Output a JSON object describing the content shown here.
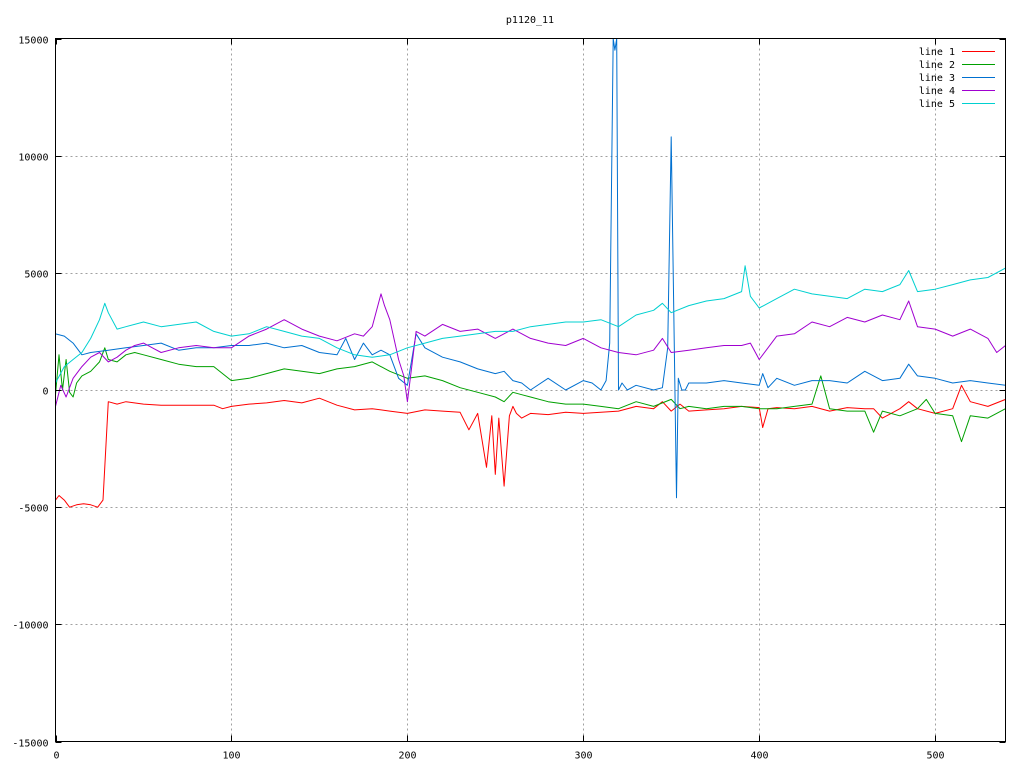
{
  "chart_data": {
    "type": "line",
    "title": "p1120_11",
    "xlabel": "",
    "ylabel": "",
    "xlim": [
      0,
      540
    ],
    "ylim": [
      -15000,
      15000
    ],
    "xticks": [
      0,
      100,
      200,
      300,
      400,
      500
    ],
    "yticks": [
      -15000,
      -10000,
      -5000,
      0,
      5000,
      10000,
      15000
    ],
    "grid": true,
    "legend_position": "top-right",
    "series": [
      {
        "name": "line 1",
        "color": "#ff0000",
        "x": [
          0,
          2,
          5,
          8,
          12,
          16,
          20,
          24,
          27,
          30,
          35,
          40,
          50,
          60,
          70,
          80,
          90,
          95,
          100,
          110,
          120,
          130,
          140,
          150,
          160,
          170,
          180,
          190,
          200,
          210,
          220,
          230,
          235,
          240,
          245,
          248,
          250,
          252,
          255,
          258,
          260,
          262,
          265,
          270,
          280,
          290,
          300,
          310,
          320,
          330,
          340,
          345,
          350,
          355,
          360,
          370,
          380,
          390,
          400,
          402,
          405,
          410,
          420,
          430,
          440,
          450,
          460,
          465,
          470,
          480,
          485,
          490,
          500,
          510,
          515,
          520,
          530,
          540
        ],
        "y": [
          -4700,
          -4500,
          -4700,
          -5000,
          -4900,
          -4850,
          -4900,
          -5000,
          -4700,
          -500,
          -600,
          -500,
          -600,
          -650,
          -650,
          -650,
          -650,
          -800,
          -700,
          -600,
          -550,
          -450,
          -550,
          -350,
          -650,
          -850,
          -800,
          -900,
          -1000,
          -850,
          -900,
          -950,
          -1700,
          -1000,
          -3300,
          -1100,
          -3600,
          -1200,
          -4100,
          -1100,
          -700,
          -1000,
          -1200,
          -1000,
          -1050,
          -950,
          -1000,
          -950,
          -900,
          -700,
          -800,
          -500,
          -900,
          -600,
          -900,
          -850,
          -800,
          -700,
          -750,
          -1600,
          -800,
          -750,
          -800,
          -700,
          -900,
          -750,
          -800,
          -800,
          -1200,
          -800,
          -500,
          -800,
          -1000,
          -800,
          200,
          -500,
          -700,
          -400
        ]
      },
      {
        "name": "line 2",
        "color": "#00a000",
        "x": [
          0,
          2,
          4,
          6,
          8,
          10,
          12,
          15,
          20,
          25,
          28,
          30,
          35,
          40,
          45,
          50,
          60,
          70,
          80,
          90,
          100,
          110,
          120,
          130,
          140,
          150,
          160,
          170,
          180,
          190,
          200,
          210,
          220,
          230,
          240,
          250,
          255,
          260,
          265,
          270,
          280,
          290,
          300,
          310,
          320,
          330,
          340,
          350,
          355,
          360,
          370,
          380,
          390,
          400,
          410,
          420,
          430,
          435,
          440,
          450,
          460,
          465,
          470,
          480,
          490,
          495,
          500,
          510,
          515,
          520,
          530,
          540
        ],
        "y": [
          -200,
          1500,
          0,
          1300,
          -100,
          -300,
          300,
          600,
          800,
          1200,
          1800,
          1300,
          1200,
          1500,
          1600,
          1500,
          1300,
          1100,
          1000,
          1000,
          400,
          500,
          700,
          900,
          800,
          700,
          900,
          1000,
          1200,
          800,
          500,
          600,
          400,
          100,
          -100,
          -300,
          -500,
          -100,
          -200,
          -300,
          -500,
          -600,
          -600,
          -700,
          -800,
          -500,
          -700,
          -400,
          -800,
          -700,
          -800,
          -700,
          -700,
          -800,
          -800,
          -700,
          -600,
          600,
          -800,
          -900,
          -900,
          -1800,
          -900,
          -1100,
          -800,
          -400,
          -1000,
          -1100,
          -2200,
          -1100,
          -1200,
          -800
        ]
      },
      {
        "name": "line 3",
        "color": "#0070d0",
        "x": [
          0,
          5,
          10,
          15,
          20,
          30,
          40,
          50,
          60,
          70,
          80,
          90,
          100,
          110,
          120,
          130,
          140,
          150,
          160,
          165,
          170,
          175,
          180,
          185,
          190,
          195,
          200,
          205,
          210,
          220,
          230,
          240,
          250,
          255,
          260,
          265,
          270,
          280,
          290,
          300,
          305,
          310,
          313,
          315,
          317,
          318,
          319,
          320,
          322,
          325,
          330,
          340,
          345,
          348,
          350,
          352,
          353,
          354,
          356,
          358,
          360,
          370,
          380,
          390,
          400,
          402,
          405,
          410,
          420,
          430,
          440,
          450,
          460,
          470,
          480,
          485,
          490,
          500,
          510,
          520,
          530,
          540
        ],
        "y": [
          2400,
          2300,
          2000,
          1500,
          1600,
          1700,
          1800,
          1900,
          2000,
          1700,
          1800,
          1800,
          1900,
          1900,
          2000,
          1800,
          1900,
          1600,
          1500,
          2200,
          1300,
          2000,
          1500,
          1700,
          1500,
          500,
          200,
          2400,
          1800,
          1400,
          1200,
          900,
          700,
          800,
          400,
          300,
          0,
          500,
          0,
          400,
          300,
          0,
          400,
          2000,
          15000,
          14500,
          15000,
          0,
          300,
          0,
          200,
          0,
          100,
          1800,
          10800,
          400,
          -4600,
          500,
          0,
          0,
          300,
          300,
          400,
          300,
          200,
          700,
          100,
          500,
          200,
          400,
          400,
          300,
          800,
          400,
          500,
          1100,
          600,
          500,
          300,
          400,
          300,
          200
        ]
      },
      {
        "name": "line 4",
        "color": "#a000d0",
        "x": [
          0,
          3,
          6,
          10,
          15,
          20,
          25,
          30,
          35,
          40,
          45,
          50,
          55,
          60,
          70,
          80,
          90,
          100,
          110,
          120,
          130,
          140,
          150,
          160,
          170,
          175,
          180,
          185,
          187,
          190,
          195,
          198,
          200,
          205,
          210,
          220,
          230,
          240,
          250,
          260,
          270,
          280,
          290,
          300,
          310,
          320,
          330,
          340,
          345,
          350,
          360,
          370,
          380,
          390,
          395,
          400,
          410,
          420,
          430,
          440,
          450,
          460,
          470,
          480,
          485,
          490,
          500,
          510,
          520,
          530,
          535,
          540
        ],
        "y": [
          -700,
          200,
          -300,
          500,
          1000,
          1400,
          1600,
          1200,
          1400,
          1700,
          1900,
          2000,
          1800,
          1600,
          1800,
          1900,
          1800,
          1800,
          2300,
          2600,
          3000,
          2600,
          2300,
          2100,
          2400,
          2300,
          2700,
          4100,
          3600,
          3000,
          1300,
          600,
          -500,
          2500,
          2300,
          2800,
          2500,
          2600,
          2200,
          2600,
          2200,
          2000,
          1900,
          2200,
          1800,
          1600,
          1500,
          1700,
          2200,
          1600,
          1700,
          1800,
          1900,
          1900,
          2000,
          1300,
          2300,
          2400,
          2900,
          2700,
          3100,
          2900,
          3200,
          3000,
          3800,
          2700,
          2600,
          2300,
          2600,
          2200,
          1600,
          1900
        ]
      },
      {
        "name": "line 5",
        "color": "#00d0d0",
        "x": [
          0,
          5,
          10,
          15,
          20,
          25,
          28,
          30,
          35,
          40,
          50,
          60,
          70,
          80,
          90,
          100,
          110,
          120,
          130,
          140,
          150,
          160,
          170,
          180,
          190,
          200,
          210,
          220,
          230,
          240,
          250,
          260,
          270,
          280,
          290,
          300,
          310,
          320,
          330,
          340,
          345,
          350,
          360,
          370,
          380,
          390,
          392,
          395,
          400,
          410,
          420,
          430,
          440,
          450,
          460,
          470,
          480,
          485,
          490,
          500,
          510,
          520,
          530,
          540
        ],
        "y": [
          300,
          1000,
          1300,
          1600,
          2200,
          3000,
          3700,
          3300,
          2600,
          2700,
          2900,
          2700,
          2800,
          2900,
          2500,
          2300,
          2400,
          2700,
          2500,
          2300,
          2200,
          1800,
          1500,
          1400,
          1500,
          1800,
          2000,
          2200,
          2300,
          2400,
          2500,
          2500,
          2700,
          2800,
          2900,
          2900,
          3000,
          2700,
          3200,
          3400,
          3700,
          3300,
          3600,
          3800,
          3900,
          4200,
          5300,
          4000,
          3500,
          3900,
          4300,
          4100,
          4000,
          3900,
          4300,
          4200,
          4500,
          5100,
          4200,
          4300,
          4500,
          4700,
          4800,
          5200
        ]
      }
    ]
  }
}
